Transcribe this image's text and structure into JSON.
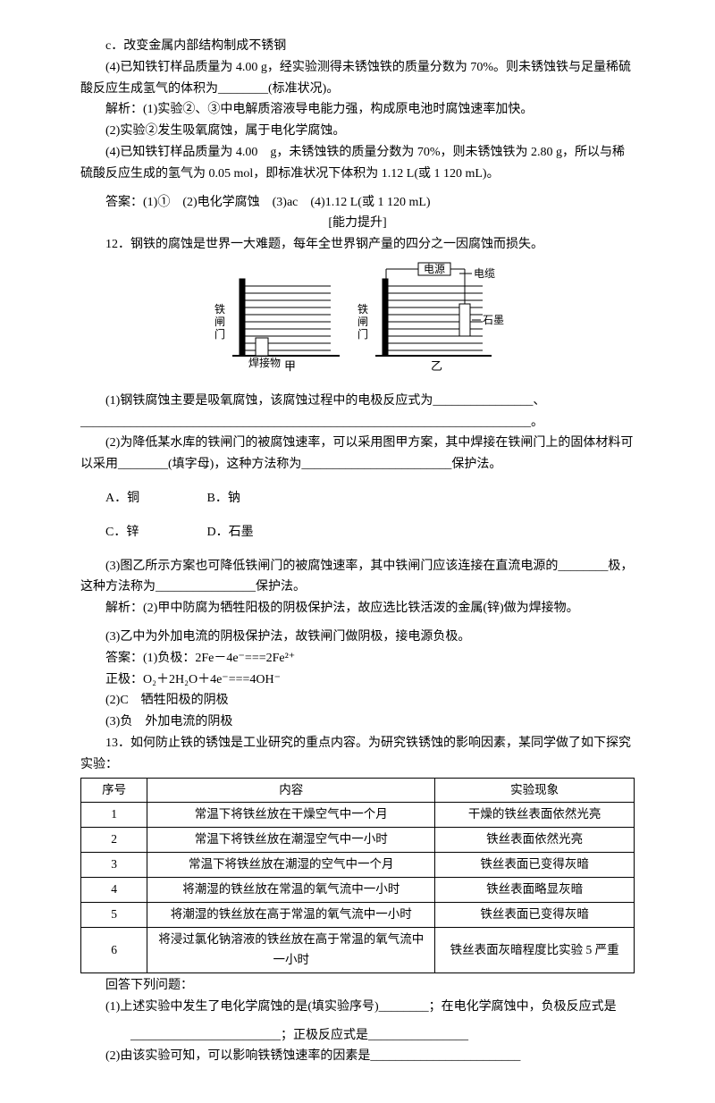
{
  "pre": {
    "c": "c．改变金属内部结构制成不锈钢",
    "q4": "(4)已知铁钉样品质量为 4.00 g，经实验测得未锈蚀铁的质量分数为 70%。则未锈蚀铁与足量稀硫酸反应生成氢气的体积为________(标准状况)。",
    "ana1": "解析：(1)实验②、③中电解质溶液导电能力强，构成原电池时腐蚀速率加快。",
    "ana2": "(2)实验②发生吸氧腐蚀，属于电化学腐蚀。",
    "ana3": "(4)已知铁钉样品质量为 4.00　g，未锈蚀铁的质量分数为 70%，则未锈蚀铁为 2.80 g，所以与稀硫酸反应生成的氢气为 0.05 mol，即标准状况下体积为 1.12 L(或 1 120 mL)。",
    "ans": "答案：(1)①　(2)电化学腐蚀　(3)ac　(4)1.12 L(或 1 120 mL)"
  },
  "section_header": "[能力提升]",
  "q12": {
    "stem": "12．钢铁的腐蚀是世界一大难题，每年全世界钢产量的四分之一因腐蚀而损失。",
    "p1": "(1)钢铁腐蚀主要是吸氧腐蚀，该腐蚀过程中的电极反应式为________________、",
    "p1b": "________________________________________________________________________。",
    "p2a": "(2)为降低某水库的铁闸门的被腐蚀速率，可以采用图甲方案，其中焊接在铁闸门上的固体材料可以采用________(填字母)，这种方法称为________________________保护法。",
    "optA": "A．铜",
    "optB": "B．钠",
    "optC": "C．锌",
    "optD": "D．石墨",
    "p3": "(3)图乙所示方案也可降低铁闸门的被腐蚀速率，其中铁闸门应该连接在直流电源的________极，这种方法称为________________保护法。",
    "ana": "解析：(2)甲中防腐为牺牲阳极的阴极保护法，故应选比铁活泼的金属(锌)做为焊接物。",
    "ana3": "(3)乙中为外加电流的阴极保护法，故铁闸门做阴极，接电源负极。",
    "ans1": "答案：(1)负极：2Fe－4e⁻===2Fe²⁺",
    "ans1b": "正极：O₂＋2H₂O＋4e⁻===4OH⁻",
    "ans2": "(2)C　牺牲阳极的阴极",
    "ans3": "(3)负　外加电流的阴极"
  },
  "diagram": {
    "label_left": "铁闸门",
    "label_weld": "焊接物",
    "label_power": "电源",
    "label_cable": "电缆",
    "label_graphite": "石墨",
    "cap_left": "甲",
    "cap_right": "乙",
    "colors": {
      "line": "#000000",
      "bg": "#ffffff"
    }
  },
  "q13": {
    "stem": "13．如何防止铁的锈蚀是工业研究的重点内容。为研究铁锈蚀的影响因素，某同学做了如下探究实验：",
    "headers": [
      "序号",
      "内容",
      "实验现象"
    ],
    "rows": [
      [
        "1",
        "常温下将铁丝放在干燥空气中一个月",
        "干燥的铁丝表面依然光亮"
      ],
      [
        "2",
        "常温下将铁丝放在潮湿空气中一小时",
        "铁丝表面依然光亮"
      ],
      [
        "3",
        "常温下将铁丝放在潮湿的空气中一个月",
        "铁丝表面已变得灰暗"
      ],
      [
        "4",
        "将潮湿的铁丝放在常温的氧气流中一小时",
        "铁丝表面略显灰暗"
      ],
      [
        "5",
        "将潮湿的铁丝放在高于常温的氧气流中一小时",
        "铁丝表面已变得灰暗"
      ],
      [
        "6",
        "将浸过氯化钠溶液的铁丝放在高于常温的氧气流中一小时",
        "铁丝表面灰暗程度比实验 5 严重"
      ]
    ],
    "after": "回答下列问题：",
    "p1": "(1)上述实验中发生了电化学腐蚀的是(填实验序号)________；在电化学腐蚀中，负极反应式是",
    "p1b": "________________________；正极反应式是________________",
    "p2": "(2)由该实验可知，可以影响铁锈蚀速率的因素是________________________"
  },
  "col_widths": [
    "12%",
    "52%",
    "36%"
  ]
}
